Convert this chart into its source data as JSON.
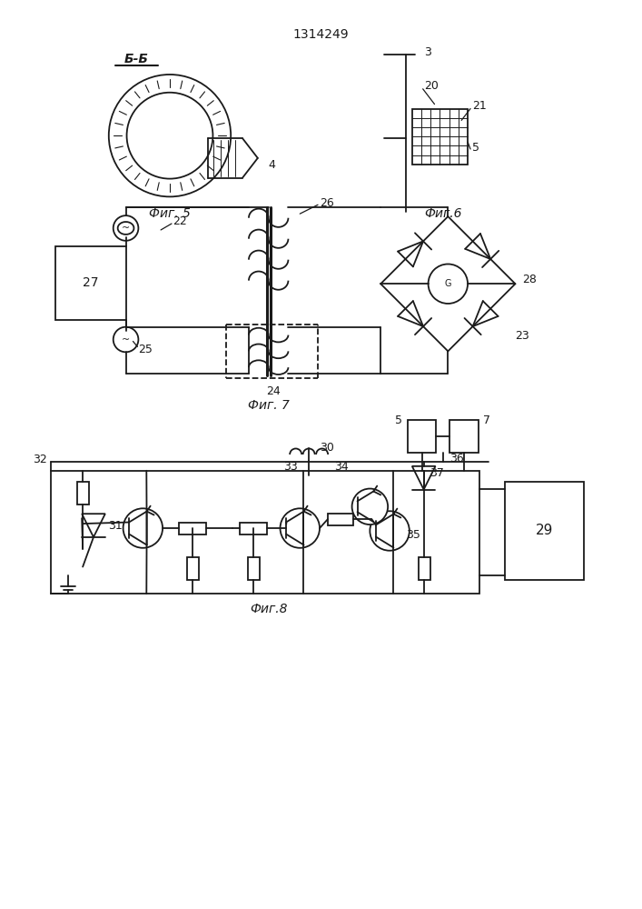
{
  "title_text": "1314249",
  "bg_color": "#ffffff",
  "line_color": "#1a1a1a",
  "fig5_label": "Фиг. 5",
  "fig6_label": "Фиг.6",
  "fig7_label": "Фиг. 7",
  "fig8_label": "Фиг.8",
  "section_label": "Б-Б"
}
